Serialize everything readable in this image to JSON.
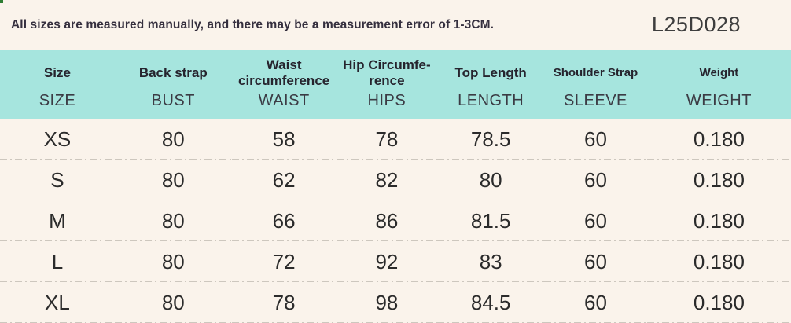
{
  "page": {
    "note": "All sizes are measured manually, and there may be a measurement error of 1-3CM.",
    "product_code": "L25D028"
  },
  "colors": {
    "page_bg": "#faf3eb",
    "header_bg": "#a6e5de",
    "text_dark": "#2b2b2b",
    "corner_dot_green": "#2e7d32"
  },
  "size_chart": {
    "columns": [
      {
        "label": "Size",
        "sublabel": "SIZE"
      },
      {
        "label": "Back strap",
        "sublabel": "BUST"
      },
      {
        "label": "Waist\ncircumference",
        "sublabel": "WAIST"
      },
      {
        "label": "Hip Circumfe-\nrence",
        "sublabel": "HIPS"
      },
      {
        "label": "Top Length",
        "sublabel": "LENGTH"
      },
      {
        "label": "Shoulder Strap",
        "sublabel": "SLEEVE"
      },
      {
        "label": "Weight",
        "sublabel": "WEIGHT"
      }
    ],
    "rows": [
      {
        "cells": [
          "XS",
          "80",
          "58",
          "78",
          "78.5",
          "60",
          "0.180"
        ]
      },
      {
        "cells": [
          "S",
          "80",
          "62",
          "82",
          "80",
          "60",
          "0.180"
        ]
      },
      {
        "cells": [
          "M",
          "80",
          "66",
          "86",
          "81.5",
          "60",
          "0.180"
        ]
      },
      {
        "cells": [
          "L",
          "80",
          "72",
          "92",
          "83",
          "60",
          "0.180"
        ]
      },
      {
        "cells": [
          "XL",
          "80",
          "78",
          "98",
          "84.5",
          "60",
          "0.180"
        ]
      }
    ]
  }
}
